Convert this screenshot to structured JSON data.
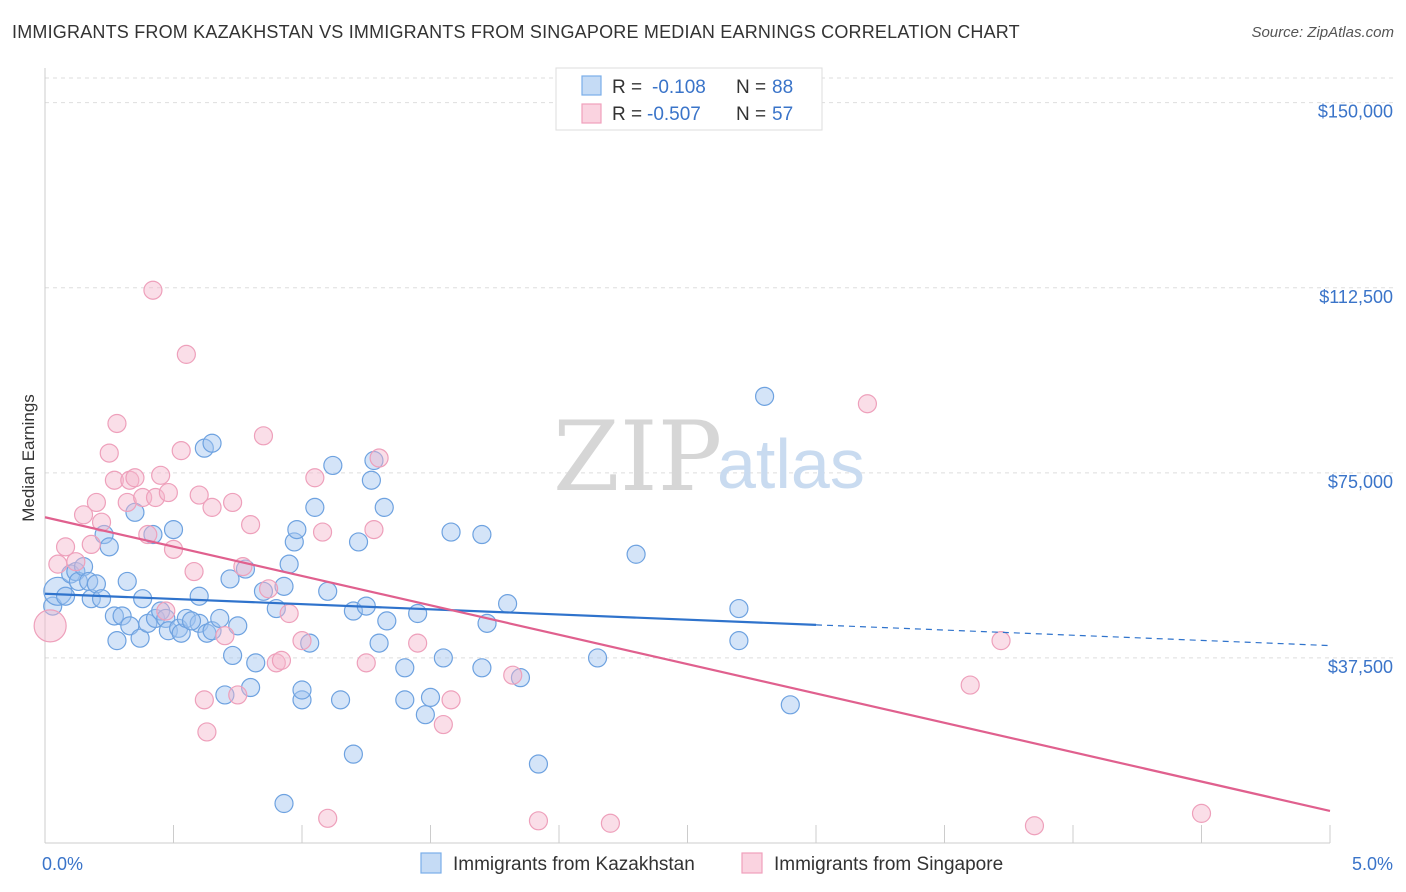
{
  "title": "IMMIGRANTS FROM KAZAKHSTAN VS IMMIGRANTS FROM SINGAPORE MEDIAN EARNINGS CORRELATION CHART",
  "source": "Source: ZipAtlas.com",
  "watermark": {
    "zip": "ZIP",
    "atlas": "atlas"
  },
  "legend": {
    "rows": [
      {
        "r_label": "R =",
        "r_value": "-0.108",
        "n_label": "N =",
        "n_value": "88"
      },
      {
        "r_label": "R =",
        "r_value": "-0.507",
        "n_label": "N =",
        "n_value": "57"
      }
    ]
  },
  "bottom_legend": [
    "Immigrants from Kazakhstan",
    "Immigrants from Singapore"
  ],
  "chart_data": {
    "type": "scatter",
    "title": "IMMIGRANTS FROM KAZAKHSTAN VS IMMIGRANTS FROM SINGAPORE MEDIAN EARNINGS CORRELATION CHART",
    "xlabel": "",
    "ylabel": "Median Earnings",
    "xlim": [
      0,
      5
    ],
    "ylim": [
      0,
      155000
    ],
    "x_ticks": [
      {
        "value": 0,
        "label": "0.0%"
      },
      {
        "value": 5,
        "label": "5.0%"
      }
    ],
    "y_ticks": [
      {
        "value": 37500,
        "label": "$37,500"
      },
      {
        "value": 75000,
        "label": "$75,000"
      },
      {
        "value": 112500,
        "label": "$112,500"
      },
      {
        "value": 150000,
        "label": "$150,000"
      }
    ],
    "grid": true,
    "legend_position": "top-center",
    "colors": {
      "kazakhstan": "#7aaee8",
      "singapore": "#f0a0bc",
      "kaz_line": "#2f73cc",
      "sing_line": "#e0608e"
    },
    "series": [
      {
        "name": "Immigrants from Kazakhstan",
        "trend": {
          "x0": 0,
          "y0": 50500,
          "x1": 3.0,
          "y1": 44200,
          "dash_x1": 5.0,
          "dash_y1": 40000
        },
        "points": [
          [
            0.03,
            48000
          ],
          [
            0.05,
            51000
          ],
          [
            0.08,
            50000
          ],
          [
            0.1,
            54500
          ],
          [
            0.12,
            55000
          ],
          [
            0.13,
            53000
          ],
          [
            0.15,
            56000
          ],
          [
            0.17,
            53000
          ],
          [
            0.18,
            49500
          ],
          [
            0.2,
            52500
          ],
          [
            0.22,
            49500
          ],
          [
            0.23,
            62500
          ],
          [
            0.25,
            60000
          ],
          [
            0.27,
            46000
          ],
          [
            0.28,
            41000
          ],
          [
            0.3,
            46000
          ],
          [
            0.32,
            53000
          ],
          [
            0.33,
            44000
          ],
          [
            0.35,
            67000
          ],
          [
            0.37,
            41500
          ],
          [
            0.38,
            49500
          ],
          [
            0.4,
            44500
          ],
          [
            0.42,
            62500
          ],
          [
            0.43,
            45500
          ],
          [
            0.45,
            47000
          ],
          [
            0.47,
            45500
          ],
          [
            0.48,
            43000
          ],
          [
            0.5,
            63500
          ],
          [
            0.52,
            43500
          ],
          [
            0.53,
            42500
          ],
          [
            0.55,
            45500
          ],
          [
            0.6,
            50000
          ],
          [
            0.6,
            44500
          ],
          [
            0.62,
            80000
          ],
          [
            0.63,
            42500
          ],
          [
            0.65,
            43000
          ],
          [
            0.65,
            81000
          ],
          [
            0.68,
            45500
          ],
          [
            0.7,
            30000
          ],
          [
            0.72,
            53500
          ],
          [
            0.73,
            38000
          ],
          [
            0.75,
            44000
          ],
          [
            0.78,
            55500
          ],
          [
            0.8,
            31500
          ],
          [
            0.82,
            36500
          ],
          [
            0.85,
            51000
          ],
          [
            0.9,
            47500
          ],
          [
            0.93,
            52000
          ],
          [
            0.95,
            56500
          ],
          [
            0.97,
            61000
          ],
          [
            0.98,
            63500
          ],
          [
            1.0,
            29000
          ],
          [
            1.0,
            31000
          ],
          [
            1.03,
            40500
          ],
          [
            0.93,
            8000
          ],
          [
            1.05,
            68000
          ],
          [
            1.1,
            51000
          ],
          [
            1.12,
            76500
          ],
          [
            1.15,
            29000
          ],
          [
            1.2,
            47000
          ],
          [
            1.22,
            61000
          ],
          [
            1.25,
            48000
          ],
          [
            1.27,
            73500
          ],
          [
            1.28,
            77500
          ],
          [
            1.3,
            40500
          ],
          [
            1.32,
            68000
          ],
          [
            1.33,
            45000
          ],
          [
            1.4,
            29000
          ],
          [
            1.4,
            35500
          ],
          [
            1.45,
            46500
          ],
          [
            1.48,
            26000
          ],
          [
            1.5,
            29500
          ],
          [
            1.55,
            37500
          ],
          [
            1.58,
            63000
          ],
          [
            1.7,
            35500
          ],
          [
            1.72,
            44500
          ],
          [
            1.7,
            62500
          ],
          [
            1.8,
            48500
          ],
          [
            1.85,
            33500
          ],
          [
            1.92,
            16000
          ],
          [
            2.15,
            37500
          ],
          [
            2.3,
            58500
          ],
          [
            2.7,
            41000
          ],
          [
            2.7,
            47500
          ],
          [
            2.8,
            90500
          ],
          [
            2.9,
            28000
          ],
          [
            1.2,
            18000
          ],
          [
            0.57,
            45000
          ]
        ]
      },
      {
        "name": "Immigrants from Singapore",
        "trend": {
          "x0": 0,
          "y0": 66000,
          "x1": 5.0,
          "y1": 6500
        },
        "points": [
          [
            0.02,
            44000
          ],
          [
            0.05,
            56500
          ],
          [
            0.08,
            60000
          ],
          [
            0.12,
            57000
          ],
          [
            0.15,
            66500
          ],
          [
            0.18,
            60500
          ],
          [
            0.2,
            69000
          ],
          [
            0.22,
            65000
          ],
          [
            0.25,
            79000
          ],
          [
            0.27,
            73500
          ],
          [
            0.28,
            85000
          ],
          [
            0.32,
            69000
          ],
          [
            0.33,
            73500
          ],
          [
            0.35,
            74000
          ],
          [
            0.38,
            70000
          ],
          [
            0.4,
            62500
          ],
          [
            0.42,
            112000
          ],
          [
            0.43,
            70000
          ],
          [
            0.45,
            74500
          ],
          [
            0.48,
            71000
          ],
          [
            0.5,
            59500
          ],
          [
            0.53,
            79500
          ],
          [
            0.55,
            99000
          ],
          [
            0.58,
            55000
          ],
          [
            0.6,
            70500
          ],
          [
            0.62,
            29000
          ],
          [
            0.63,
            22500
          ],
          [
            0.65,
            68000
          ],
          [
            0.7,
            42000
          ],
          [
            0.73,
            69000
          ],
          [
            0.75,
            30000
          ],
          [
            0.77,
            56000
          ],
          [
            0.8,
            64500
          ],
          [
            0.85,
            82500
          ],
          [
            0.87,
            51500
          ],
          [
            0.9,
            36500
          ],
          [
            0.92,
            37000
          ],
          [
            0.95,
            46500
          ],
          [
            1.0,
            41000
          ],
          [
            1.05,
            74000
          ],
          [
            1.08,
            63000
          ],
          [
            1.1,
            5000
          ],
          [
            1.25,
            36500
          ],
          [
            1.28,
            63500
          ],
          [
            1.3,
            78000
          ],
          [
            1.45,
            40500
          ],
          [
            1.55,
            24000
          ],
          [
            1.58,
            29000
          ],
          [
            1.82,
            34000
          ],
          [
            1.92,
            4500
          ],
          [
            2.2,
            4000
          ],
          [
            3.2,
            89000
          ],
          [
            3.6,
            32000
          ],
          [
            3.72,
            41000
          ],
          [
            3.85,
            3500
          ],
          [
            4.5,
            6000
          ],
          [
            0.47,
            47000
          ]
        ]
      }
    ]
  }
}
